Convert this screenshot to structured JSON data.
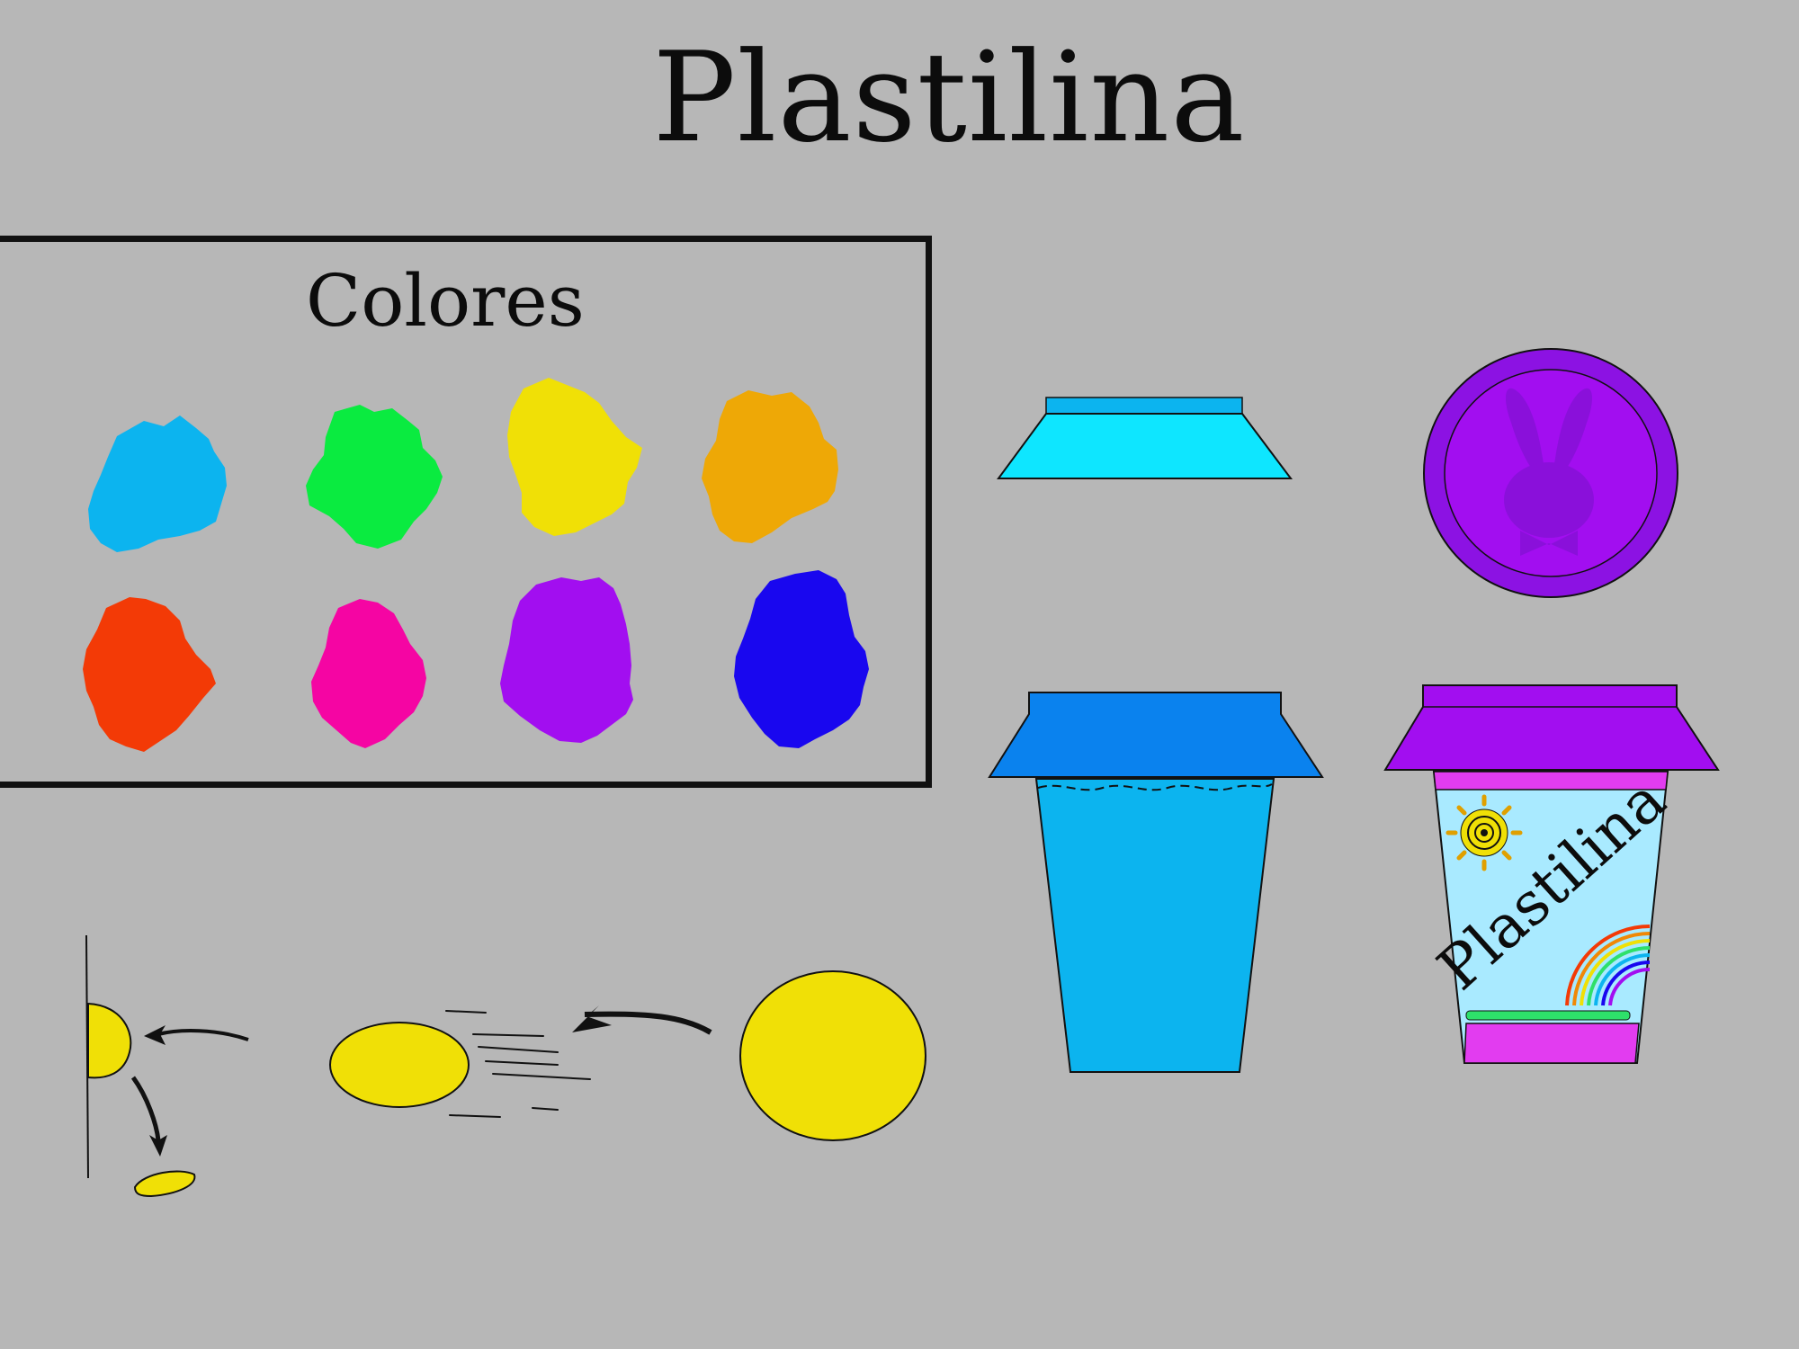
{
  "title": "Plastilina",
  "palette": {
    "heading": "Colores",
    "swatches": [
      {
        "name": "light-blue",
        "color": "#0cb4ef"
      },
      {
        "name": "green",
        "color": "#0aeb40"
      },
      {
        "name": "yellow",
        "color": "#f0e006"
      },
      {
        "name": "orange",
        "color": "#eea806"
      },
      {
        "name": "red",
        "color": "#f33a06"
      },
      {
        "name": "pink",
        "color": "#f505a3"
      },
      {
        "name": "purple",
        "color": "#a20ef0"
      },
      {
        "name": "blue",
        "color": "#1907ef"
      }
    ]
  },
  "container": {
    "label": "Plastilina",
    "lid_color": "#a20ef0",
    "cup_color": "#0cb4ef",
    "cap_color": "#0a82ee",
    "label_bg": "#a9eaff",
    "trim_color": "#e23cf0"
  },
  "clay_ball": {
    "color": "#f0e006"
  }
}
